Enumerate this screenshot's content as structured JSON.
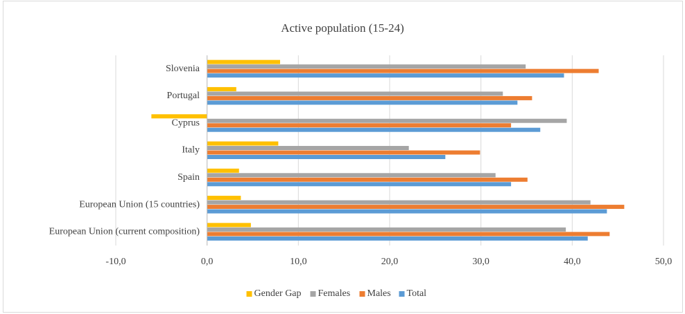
{
  "chart_data": {
    "type": "hbar",
    "title": "Active population (15-24)",
    "categories": [
      "European Union (current composition)",
      "European Union (15 countries)",
      "Spain",
      "Italy",
      "Cyprus",
      "Portugal",
      "Slovenia"
    ],
    "series": [
      {
        "name": "Gender Gap",
        "color": "#ffc000",
        "values": [
          4.8,
          3.7,
          3.5,
          7.8,
          -6.1,
          3.2,
          8.0
        ]
      },
      {
        "name": "Females",
        "color": "#a5a5a5",
        "values": [
          39.3,
          42.0,
          31.6,
          22.1,
          39.4,
          32.4,
          34.9
        ]
      },
      {
        "name": "Males",
        "color": "#ed7d31",
        "values": [
          44.1,
          45.7,
          35.1,
          29.9,
          33.3,
          35.6,
          42.9
        ]
      },
      {
        "name": "Total",
        "color": "#5b9bd5",
        "values": [
          41.7,
          43.8,
          33.3,
          26.1,
          36.5,
          34.0,
          39.1
        ]
      }
    ],
    "xlim": [
      -10,
      50
    ],
    "xticks": [
      {
        "value": -10,
        "label": "-10,0"
      },
      {
        "value": 0,
        "label": "0,0"
      },
      {
        "value": 10,
        "label": "10,0"
      },
      {
        "value": 20,
        "label": "20,0"
      },
      {
        "value": 30,
        "label": "30,0"
      },
      {
        "value": 40,
        "label": "40,0"
      },
      {
        "value": 50,
        "label": "50,0"
      }
    ],
    "grid": true,
    "legend": "bottom"
  }
}
